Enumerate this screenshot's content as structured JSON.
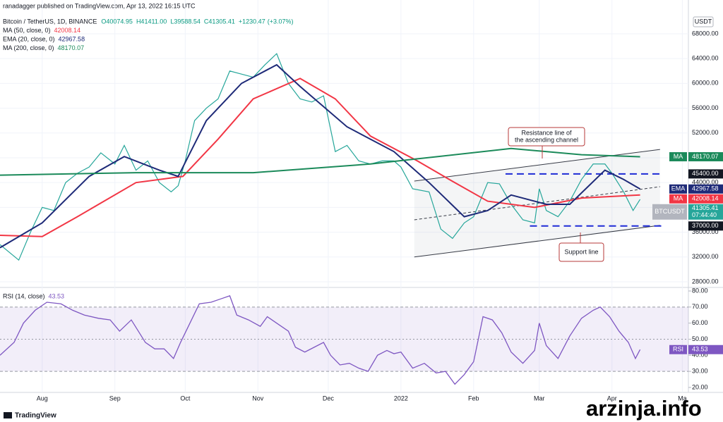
{
  "header": {
    "published": "ranadagger published on TradingView.com, Apr 13, 2022 16:15 UTC",
    "symbol": "Bitcoin / TetherUS, 1D, BINANCE",
    "ohlc": [
      {
        "value": 40074.95,
        "label": "O40074.95"
      },
      {
        "value": 41411.0,
        "label": "H41411.00"
      },
      {
        "value": 39588.54,
        "label": "L39588.54"
      },
      {
        "value": 41305.41,
        "label": "C41305.41"
      }
    ],
    "change": {
      "value": 1230.47,
      "label": "+1230.47"
    },
    "change_pct": {
      "value": 3.07,
      "label": "(+3.07%)"
    }
  },
  "currency": "USDT",
  "chart_data": [
    {
      "type": "line",
      "xlim": [
        -18,
        275.6
      ],
      "ylim": [
        27090,
        73450
      ],
      "xticks": [
        {
          "value": 0,
          "label": "Aug"
        },
        {
          "value": 31,
          "label": "Sep"
        },
        {
          "value": 61,
          "label": "Oct"
        },
        {
          "value": 92,
          "label": "Nov"
        },
        {
          "value": 122,
          "label": "Dec"
        },
        {
          "value": 153,
          "label": "2022"
        },
        {
          "value": 184,
          "label": "Feb"
        },
        {
          "value": 212,
          "label": "Mar"
        },
        {
          "value": 243,
          "label": "Apr"
        },
        {
          "value": 273,
          "label": "Ma"
        }
      ],
      "yticks": [
        {
          "value": 28000,
          "label": "28000.00"
        },
        {
          "value": 32000,
          "label": "32000.00"
        },
        {
          "value": 36000,
          "label": "36000.00"
        },
        {
          "value": 40000,
          "label": "40000.00"
        },
        {
          "value": 44000,
          "label": "44000.00"
        },
        {
          "value": 48000,
          "label": "48000.00"
        },
        {
          "value": 52000,
          "label": "52000.00"
        },
        {
          "value": 56000,
          "label": "56000.00"
        },
        {
          "value": 60000,
          "label": "60000.00"
        },
        {
          "value": 64000,
          "label": "64000.00"
        },
        {
          "value": 68000,
          "label": "68000.00"
        }
      ],
      "grid": true,
      "series": [
        {
          "name": "BTCUSDT",
          "tag": "BTCUSDT",
          "countdown": "07:44:40",
          "color": "#26a69a",
          "x": [
            -18,
            -10,
            -5,
            0,
            5,
            10,
            15,
            20,
            25,
            31,
            35,
            40,
            45,
            50,
            55,
            58,
            61,
            65,
            70,
            75,
            80,
            85,
            90,
            95,
            100,
            105,
            110,
            115,
            120,
            125,
            130,
            135,
            140,
            145,
            150,
            153,
            158,
            165,
            170,
            175,
            180,
            184,
            190,
            195,
            200,
            205,
            210,
            212,
            215,
            220,
            225,
            230,
            235,
            240,
            243,
            248,
            252,
            255
          ],
          "values": [
            34000,
            31500,
            36000,
            40000,
            39500,
            44000,
            45500,
            46500,
            48800,
            47000,
            50000,
            46000,
            47500,
            44000,
            42500,
            43500,
            47500,
            54000,
            56000,
            57500,
            62000,
            61500,
            61000,
            63000,
            64800,
            60000,
            57500,
            57000,
            58000,
            49000,
            50000,
            47500,
            47000,
            47500,
            47500,
            46500,
            43000,
            42500,
            36500,
            35000,
            37500,
            38500,
            44000,
            43800,
            40500,
            38000,
            37500,
            43000,
            39500,
            38500,
            41000,
            44500,
            47000,
            47000,
            45500,
            42500,
            39500,
            41305.41
          ]
        },
        {
          "name": "MA (50, close, 0)",
          "tag": "MA",
          "color": "#f23645",
          "x": [
            -18,
            0,
            15,
            40,
            60,
            75,
            90,
            110,
            125,
            140,
            160,
            175,
            190,
            210,
            230,
            255
          ],
          "values": [
            35500,
            35300,
            38500,
            44000,
            45000,
            51000,
            57500,
            60800,
            57500,
            51500,
            47500,
            44200,
            41000,
            40000,
            41500,
            42008.14
          ]
        },
        {
          "name": "EMA (20, close, 0)",
          "tag": "EMA",
          "color": "#1e2a78",
          "x": [
            -18,
            0,
            20,
            35,
            50,
            58,
            70,
            85,
            100,
            110,
            130,
            150,
            165,
            180,
            190,
            200,
            215,
            225,
            240,
            248,
            255
          ],
          "values": [
            33500,
            37500,
            45000,
            48200,
            46000,
            45000,
            54000,
            60000,
            63000,
            59500,
            53000,
            49000,
            44000,
            38500,
            39500,
            42000,
            40500,
            40500,
            46000,
            44500,
            42967.58
          ]
        },
        {
          "name": "MA (200, close, 0)",
          "tag": "MA",
          "color": "#1b8a5a",
          "x": [
            -18,
            40,
            90,
            140,
            200,
            230,
            255
          ],
          "values": [
            45200,
            45600,
            45600,
            47000,
            49500,
            48500,
            48170.07
          ]
        }
      ],
      "levels": [
        {
          "value": 45400,
          "label": "45400.00",
          "x": [
            197.6,
            265
          ]
        },
        {
          "value": 37000,
          "label": "37000.00",
          "x": [
            208,
            265
          ]
        }
      ],
      "channel": {
        "resistance": {
          "x": [
            158.7,
            263.5
          ],
          "values": [
            44250,
            49350
          ]
        },
        "middle": {
          "x": [
            158.7,
            263.5
          ],
          "values": [
            38000,
            43340
          ]
        },
        "support": {
          "x": [
            158.7,
            263.5
          ],
          "values": [
            32000,
            37100
          ]
        }
      },
      "annotations": [
        {
          "lines": [
            "Resistance line of",
            "the ascending channel"
          ]
        },
        {
          "lines": [
            "Support line"
          ]
        }
      ]
    },
    {
      "type": "line",
      "title": "RSI (14, close)",
      "ylim": [
        16.9,
        82.2
      ],
      "yticks": [
        {
          "value": 20,
          "label": "20.00"
        },
        {
          "value": 30,
          "label": "30.00"
        },
        {
          "value": 40,
          "label": "40.00"
        },
        {
          "value": 50,
          "label": "50.00"
        },
        {
          "value": 60,
          "label": "60.00"
        },
        {
          "value": 70,
          "label": "70.00"
        },
        {
          "value": 80,
          "label": "80.00"
        }
      ],
      "band": [
        30,
        70
      ],
      "midline": 50,
      "series": [
        {
          "name": "RSI",
          "tag": "RSI",
          "color": "#7e57c2",
          "x": [
            -18,
            -12,
            -8,
            -3,
            2,
            8,
            13,
            18,
            24,
            29,
            33,
            38,
            44,
            48,
            52,
            56,
            59,
            63,
            67,
            72,
            76,
            80,
            83,
            88,
            93,
            96,
            100,
            105,
            108,
            112,
            116,
            120,
            123,
            127,
            131,
            135,
            139,
            143,
            147,
            150,
            153,
            158,
            163,
            168,
            172,
            176,
            180,
            184,
            188,
            192,
            196,
            200,
            205,
            210,
            212,
            215,
            220,
            225,
            230,
            235,
            238,
            242,
            246,
            250,
            253,
            255
          ],
          "values": [
            40,
            48,
            60,
            68,
            73,
            72,
            68,
            65,
            63,
            62,
            55,
            62,
            48,
            44,
            44,
            38,
            48,
            60,
            72,
            73,
            75,
            77,
            65,
            62,
            58,
            64,
            60,
            55,
            45,
            42,
            45,
            48,
            40,
            34,
            35,
            32,
            30,
            40,
            43,
            41,
            42,
            32,
            35,
            29,
            30,
            22,
            28,
            36,
            64,
            62,
            54,
            42,
            35,
            43,
            60,
            46,
            38,
            52,
            63,
            68,
            70,
            64,
            55,
            48,
            38,
            43.53
          ]
        }
      ]
    }
  ],
  "footer": "TradingView",
  "watermark": "arzinja.info"
}
